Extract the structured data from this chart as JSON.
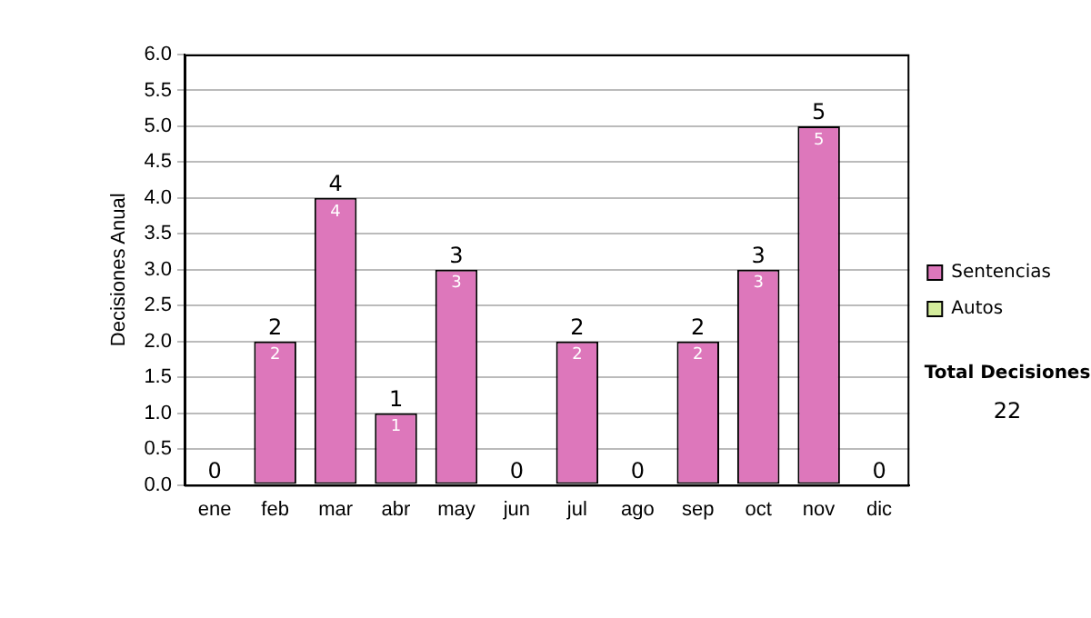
{
  "chart_data": {
    "type": "bar",
    "ylabel": "Decisiones Anual",
    "categories": [
      "ene",
      "feb",
      "mar",
      "abr",
      "may",
      "jun",
      "jul",
      "ago",
      "sep",
      "oct",
      "nov",
      "dic"
    ],
    "series": [
      {
        "name": "Sentencias",
        "color": "#dd77bb",
        "values": [
          0,
          2,
          4,
          1,
          3,
          0,
          2,
          0,
          2,
          3,
          5,
          0
        ],
        "value_labels": [
          null,
          "2",
          "4",
          "1",
          "3",
          null,
          "2",
          null,
          "2",
          "3",
          "5",
          null
        ]
      },
      {
        "name": "Autos",
        "color": "#d4ec9c",
        "values": [
          0,
          0,
          0,
          0,
          0,
          0,
          0,
          0,
          0,
          0,
          0,
          0
        ]
      }
    ],
    "stacked": true,
    "totals": [
      "0",
      "2",
      "4",
      "1",
      "3",
      "0",
      "2",
      "0",
      "2",
      "3",
      "5",
      "0"
    ],
    "ylim": [
      0,
      6
    ],
    "yticks": [
      {
        "value": 0,
        "label": "0.0"
      },
      {
        "value": 0.5,
        "label": "0.5"
      },
      {
        "value": 1,
        "label": "1.0"
      },
      {
        "value": 1.5,
        "label": "1.5"
      },
      {
        "value": 2,
        "label": "2.0"
      },
      {
        "value": 2.5,
        "label": "2.5"
      },
      {
        "value": 3,
        "label": "3.0"
      },
      {
        "value": 3.5,
        "label": "3.5"
      },
      {
        "value": 4,
        "label": "4.0"
      },
      {
        "value": 4.5,
        "label": "4.5"
      },
      {
        "value": 5,
        "label": "5.0"
      },
      {
        "value": 5.5,
        "label": "5.5"
      },
      {
        "value": 6,
        "label": "6.0"
      }
    ],
    "grid": "y",
    "legend": "right",
    "annotations": [
      "Total Decisiones",
      "22"
    ]
  }
}
